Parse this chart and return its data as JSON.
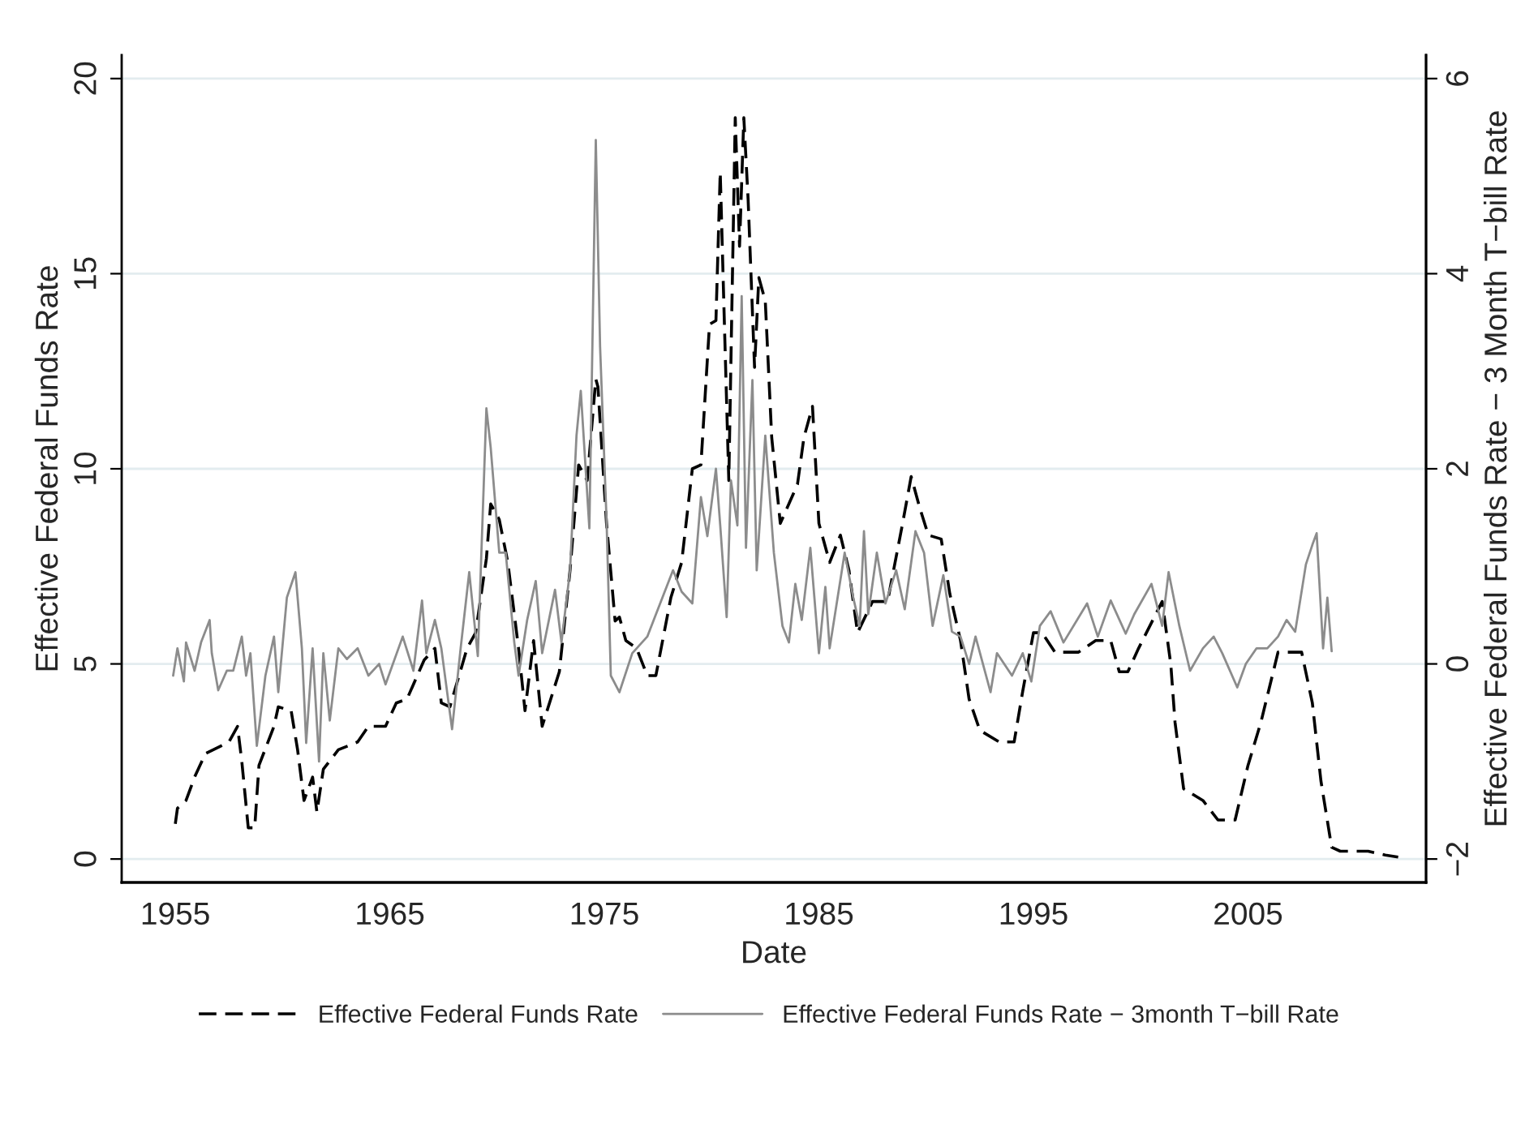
{
  "chart_data": {
    "type": "line",
    "xlabel": "Date",
    "ylabel": "Effective Federal Funds Rate",
    "y2label": "Effective Federal Funds Rate − 3 Month T−bill Rate",
    "xlim": [
      1952.5,
      2013.3
    ],
    "xticks": [
      1955,
      1965,
      1975,
      1985,
      1995,
      2005
    ],
    "ylim": [
      -0.6,
      20.6
    ],
    "yticks": [
      0,
      5,
      10,
      15,
      20
    ],
    "y2lim": [
      -2.24,
      6.24
    ],
    "y2ticks": [
      {
        "value": -2,
        "label": "−2"
      },
      0,
      2,
      4,
      6
    ],
    "grid": "y",
    "legend": "bottom",
    "series": [
      {
        "name": "Effective Federal Funds Rate",
        "color": "#000000",
        "line_style": "dashed",
        "axis": "y",
        "x": [
          1955.0,
          1955.1,
          1955.5,
          1955.9,
          1956.4,
          1957.5,
          1957.9,
          1958.1,
          1958.4,
          1958.7,
          1958.9,
          1959.6,
          1959.8,
          1960.4,
          1960.7,
          1961.0,
          1961.4,
          1961.6,
          1961.9,
          1962.6,
          1963.5,
          1964.0,
          1964.8,
          1965.3,
          1965.8,
          1966.6,
          1967.1,
          1967.4,
          1967.8,
          1968.6,
          1969.0,
          1969.5,
          1969.7,
          1970.1,
          1970.5,
          1971.0,
          1971.3,
          1971.7,
          1972.1,
          1972.9,
          1973.4,
          1973.8,
          1974.2,
          1974.6,
          1974.7,
          1975.1,
          1975.5,
          1975.7,
          1976.0,
          1976.5,
          1977.0,
          1977.4,
          1978.1,
          1978.6,
          1979.1,
          1979.5,
          1979.9,
          1980.2,
          1980.4,
          1980.6,
          1980.8,
          1981.1,
          1981.3,
          1981.5,
          1981.7,
          1982.0,
          1982.2,
          1982.5,
          1982.8,
          1983.2,
          1983.6,
          1984.0,
          1984.3,
          1984.7,
          1985.0,
          1985.5,
          1986.0,
          1986.4,
          1986.8,
          1987.5,
          1988.2,
          1988.9,
          1989.3,
          1989.7,
          1990.1,
          1990.7,
          1991.1,
          1991.6,
          1992.0,
          1992.5,
          1993.4,
          1994.1,
          1994.5,
          1995.0,
          1995.4,
          1996.0,
          1997.1,
          1997.9,
          1998.6,
          1999.0,
          1999.4,
          1999.9,
          2001.0,
          2001.4,
          2001.6,
          2002.0,
          2002.9,
          2003.6,
          2004.4,
          2005.0,
          2005.6,
          2006.4,
          2007.5,
          2008.0,
          2008.4,
          2008.9,
          2009.3,
          2010.6,
          2011.4,
          2012.0
        ],
        "values": [
          0.9,
          1.3,
          1.5,
          2.1,
          2.7,
          3.0,
          3.4,
          2.5,
          0.8,
          0.8,
          2.4,
          3.4,
          3.9,
          3.8,
          2.8,
          1.5,
          2.1,
          1.2,
          2.3,
          2.8,
          3.0,
          3.4,
          3.4,
          4.0,
          4.1,
          5.1,
          5.4,
          4.0,
          3.9,
          5.4,
          5.8,
          7.7,
          9.1,
          8.7,
          7.6,
          5.4,
          3.8,
          5.6,
          3.4,
          4.8,
          7.4,
          10.1,
          9.7,
          12.3,
          12.1,
          8.6,
          6.1,
          6.2,
          5.6,
          5.4,
          4.7,
          4.7,
          6.7,
          7.6,
          10.0,
          10.1,
          13.7,
          13.8,
          17.6,
          13.6,
          9.7,
          19.0,
          15.7,
          19.0,
          16.9,
          12.6,
          14.9,
          14.3,
          10.8,
          8.6,
          9.1,
          9.6,
          10.8,
          11.6,
          8.6,
          7.6,
          8.3,
          7.4,
          5.8,
          6.6,
          6.6,
          8.6,
          9.8,
          9.0,
          8.3,
          8.2,
          6.8,
          5.6,
          4.1,
          3.3,
          3.0,
          3.0,
          4.3,
          5.8,
          5.8,
          5.3,
          5.3,
          5.6,
          5.6,
          4.8,
          4.8,
          5.4,
          6.6,
          5.0,
          3.5,
          1.8,
          1.5,
          1.0,
          1.0,
          2.4,
          3.5,
          5.3,
          5.3,
          4.0,
          2.0,
          0.3,
          0.2,
          0.2,
          0.1,
          0.05
        ]
      },
      {
        "name": "Effective Federal Funds Rate − 3month T−bill Rate",
        "color": "#8c8c8c",
        "line_style": "solid",
        "axis": "y2",
        "x": [
          1954.9,
          1955.1,
          1955.4,
          1955.5,
          1955.9,
          1956.2,
          1956.6,
          1956.7,
          1957.0,
          1957.4,
          1957.7,
          1958.1,
          1958.3,
          1958.5,
          1958.8,
          1959.2,
          1959.6,
          1959.8,
          1960.2,
          1960.6,
          1960.9,
          1961.1,
          1961.4,
          1961.7,
          1961.9,
          1962.2,
          1962.6,
          1963.0,
          1963.5,
          1964.0,
          1964.5,
          1964.8,
          1965.6,
          1966.1,
          1966.5,
          1966.7,
          1967.1,
          1967.4,
          1967.9,
          1968.3,
          1968.7,
          1969.1,
          1969.5,
          1969.7,
          1970.1,
          1970.4,
          1970.8,
          1971.0,
          1971.4,
          1971.8,
          1972.1,
          1972.7,
          1973.0,
          1973.4,
          1973.7,
          1973.9,
          1974.3,
          1974.6,
          1974.8,
          1975.1,
          1975.3,
          1975.7,
          1976.3,
          1977.0,
          1977.6,
          1978.2,
          1978.6,
          1979.1,
          1979.5,
          1979.8,
          1980.2,
          1980.4,
          1980.7,
          1980.9,
          1981.2,
          1981.4,
          1981.6,
          1981.9,
          1982.1,
          1982.5,
          1982.9,
          1983.3,
          1983.6,
          1983.9,
          1984.2,
          1984.6,
          1985.0,
          1985.3,
          1985.5,
          1986.2,
          1986.6,
          1986.9,
          1987.1,
          1987.3,
          1987.7,
          1988.1,
          1988.6,
          1989.0,
          1989.5,
          1989.9,
          1990.3,
          1990.8,
          1991.2,
          1991.6,
          1992.0,
          1992.3,
          1993.0,
          1993.3,
          1994.0,
          1994.5,
          1994.9,
          1995.3,
          1995.8,
          1996.4,
          1997.5,
          1998.0,
          1998.6,
          1999.3,
          1999.7,
          2000.5,
          2001.0,
          2001.3,
          2001.8,
          2002.3,
          2002.9,
          2003.4,
          2003.8,
          2004.5,
          2004.9,
          2005.4,
          2005.9,
          2006.4,
          2006.8,
          2007.2,
          2007.7,
          2008.0,
          2008.2,
          2008.5,
          2008.7,
          2008.9
        ],
        "values": [
          -0.12,
          0.16,
          -0.18,
          0.22,
          -0.07,
          0.22,
          0.45,
          0.11,
          -0.27,
          -0.07,
          -0.07,
          0.28,
          -0.12,
          0.11,
          -0.84,
          -0.12,
          0.28,
          -0.29,
          0.68,
          0.94,
          0.16,
          -0.81,
          0.16,
          -1.0,
          0.11,
          -0.58,
          0.16,
          0.05,
          0.16,
          -0.12,
          0.0,
          -0.21,
          0.28,
          -0.07,
          0.65,
          0.11,
          0.45,
          0.16,
          -0.67,
          0.16,
          0.94,
          0.08,
          2.62,
          2.22,
          1.14,
          1.14,
          0.22,
          -0.12,
          0.45,
          0.85,
          0.11,
          0.76,
          0.22,
          0.96,
          2.34,
          2.8,
          1.39,
          5.37,
          3.25,
          1.48,
          -0.12,
          -0.29,
          0.11,
          0.28,
          0.62,
          0.96,
          0.74,
          0.62,
          1.71,
          1.31,
          2.0,
          1.42,
          0.48,
          1.88,
          1.42,
          3.77,
          1.19,
          2.91,
          0.96,
          2.34,
          1.14,
          0.39,
          0.22,
          0.82,
          0.45,
          1.19,
          0.11,
          0.79,
          0.16,
          1.14,
          0.68,
          0.39,
          1.36,
          0.51,
          1.14,
          0.62,
          0.96,
          0.56,
          1.36,
          1.14,
          0.39,
          0.91,
          0.33,
          0.28,
          0.0,
          0.28,
          -0.29,
          0.11,
          -0.12,
          0.11,
          -0.18,
          0.39,
          0.54,
          0.22,
          0.62,
          0.28,
          0.65,
          0.31,
          0.51,
          0.82,
          0.39,
          0.94,
          0.39,
          -0.07,
          0.16,
          0.28,
          0.11,
          -0.24,
          0.0,
          0.16,
          0.16,
          0.28,
          0.45,
          0.33,
          1.02,
          1.22,
          1.34,
          0.16,
          0.68,
          0.13
        ]
      }
    ]
  }
}
